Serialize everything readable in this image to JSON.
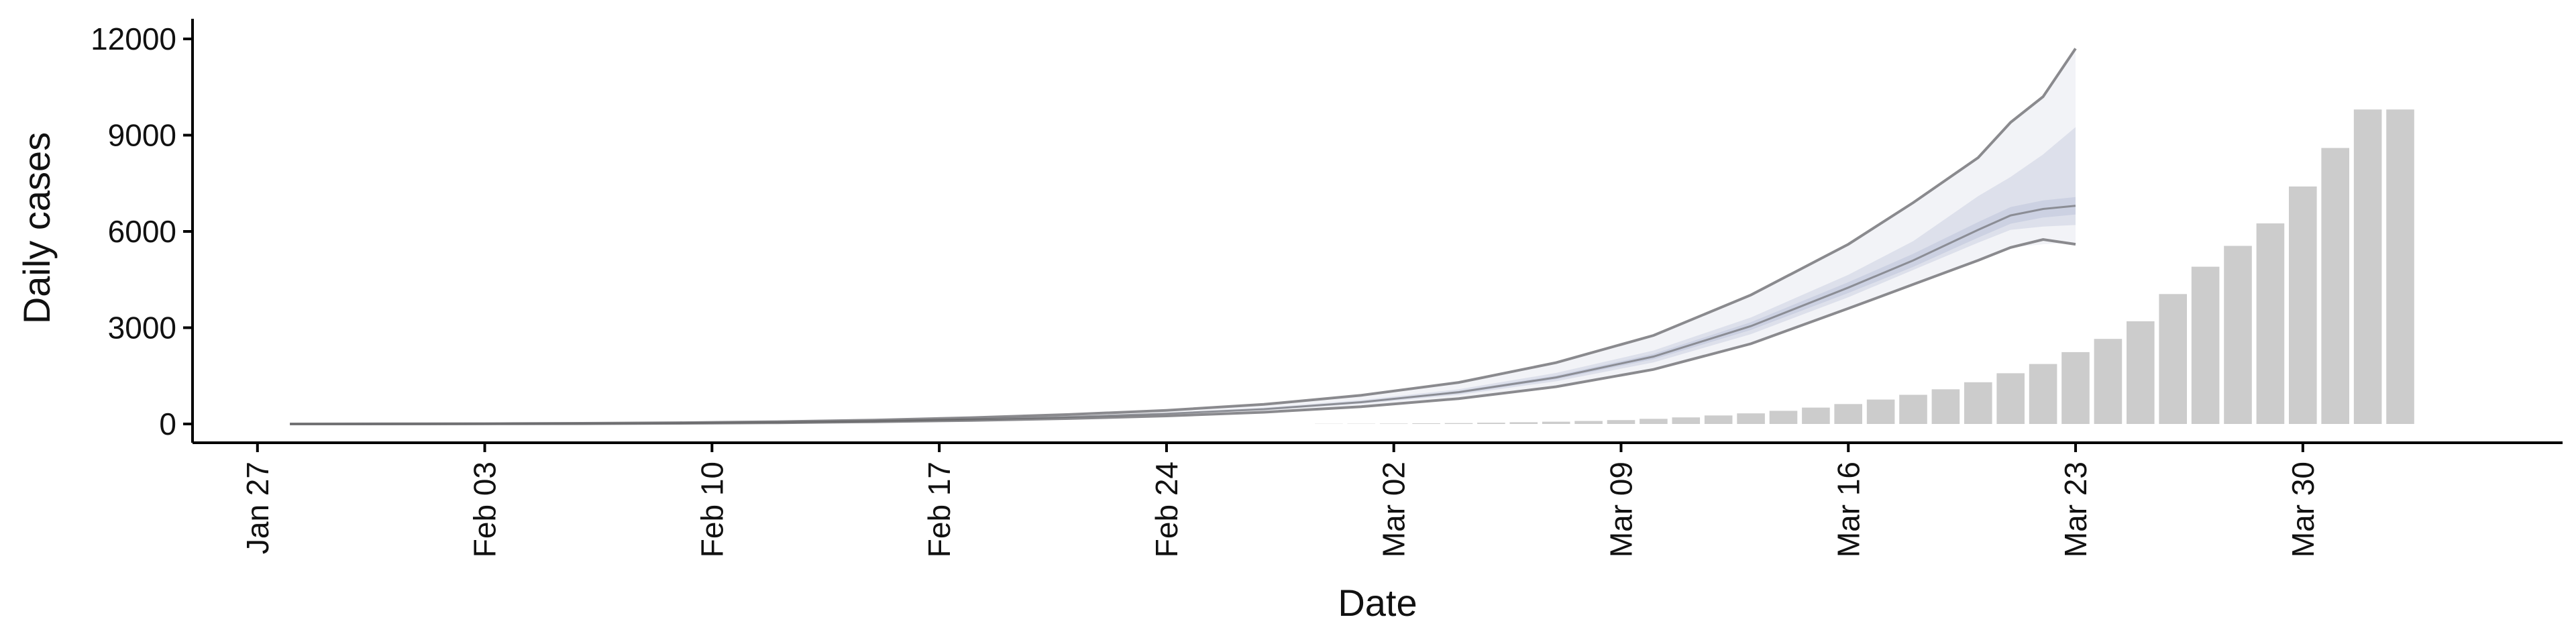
{
  "chart_data": {
    "type": "bar+line",
    "xlabel": "Date",
    "ylabel": "Daily cases",
    "ylim": [
      0,
      12000
    ],
    "xlim": [
      "2020-01-25",
      "2020-04-07"
    ],
    "y_ticks": [
      0,
      3000,
      6000,
      9000,
      12000
    ],
    "y_tick_labels": [
      "0",
      "3000",
      "6000",
      "9000",
      "12000"
    ],
    "x_ticks": [
      "2020-01-27",
      "2020-02-03",
      "2020-02-10",
      "2020-02-17",
      "2020-02-24",
      "2020-03-02",
      "2020-03-09",
      "2020-03-16",
      "2020-03-23",
      "2020-03-30"
    ],
    "x_tick_labels": [
      "Jan 27",
      "Feb 03",
      "Feb 10",
      "Feb 17",
      "Feb 24",
      "Mar 02",
      "Mar 09",
      "Mar 16",
      "Mar 23",
      "Mar 30"
    ],
    "grid": false,
    "colors": {
      "bars": "#cccccc",
      "outer_band": "#f2f3f7",
      "inner_band": "#dde0eb",
      "center_band": "#ccd1e2",
      "interval_line": "#8a8a8e",
      "estimate_line": "#555555",
      "axis": "#000000"
    },
    "bars": {
      "dates": [
        "2020-02-29",
        "2020-03-01",
        "2020-03-02",
        "2020-03-03",
        "2020-03-04",
        "2020-03-05",
        "2020-03-06",
        "2020-03-07",
        "2020-03-08",
        "2020-03-09",
        "2020-03-10",
        "2020-03-11",
        "2020-03-12",
        "2020-03-13",
        "2020-03-14",
        "2020-03-15",
        "2020-03-16",
        "2020-03-17",
        "2020-03-18",
        "2020-03-19",
        "2020-03-20",
        "2020-03-21",
        "2020-03-22",
        "2020-03-23",
        "2020-03-24",
        "2020-03-25",
        "2020-03-26",
        "2020-03-27",
        "2020-03-28",
        "2020-03-29",
        "2020-03-30",
        "2020-03-31",
        "2020-04-01",
        "2020-04-02"
      ],
      "values": [
        6,
        9,
        13,
        20,
        28,
        40,
        55,
        72,
        95,
        122,
        160,
        205,
        265,
        330,
        410,
        510,
        620,
        760,
        910,
        1080,
        1300,
        1580,
        1870,
        2240,
        2650,
        3200,
        4050,
        4900,
        5550,
        6250,
        7400,
        8600,
        9800,
        9800
      ]
    },
    "estimate": {
      "dates": [
        "2020-01-28",
        "2020-01-31",
        "2020-02-03",
        "2020-02-06",
        "2020-02-09",
        "2020-02-12",
        "2020-02-15",
        "2020-02-18",
        "2020-02-21",
        "2020-02-24",
        "2020-02-27",
        "2020-03-01",
        "2020-03-04",
        "2020-03-07",
        "2020-03-10",
        "2020-03-13",
        "2020-03-16",
        "2020-03-18",
        "2020-03-20",
        "2020-03-21",
        "2020-03-22",
        "2020-03-23"
      ],
      "center": [
        0,
        2,
        6,
        14,
        28,
        52,
        90,
        145,
        220,
        320,
        460,
        680,
        990,
        1450,
        2100,
        3050,
        4250,
        5100,
        6050,
        6500,
        6700,
        6800
      ],
      "inner_lower": [
        0,
        2,
        5,
        12,
        25,
        47,
        82,
        132,
        202,
        295,
        425,
        630,
        910,
        1330,
        1920,
        2800,
        3950,
        4800,
        5650,
        6050,
        6150,
        6200
      ],
      "inner_upper": [
        0,
        3,
        7,
        16,
        32,
        58,
        99,
        160,
        242,
        350,
        505,
        745,
        1080,
        1590,
        2290,
        3320,
        4650,
        5700,
        7100,
        7700,
        8400,
        9250
      ],
      "interval_lower": [
        0,
        1,
        4,
        9,
        20,
        38,
        68,
        110,
        170,
        250,
        365,
        540,
        790,
        1160,
        1700,
        2500,
        3600,
        4350,
        5100,
        5500,
        5750,
        5600
      ],
      "interval_upper": [
        0,
        4,
        9,
        20,
        40,
        72,
        122,
        196,
        295,
        425,
        610,
        895,
        1295,
        1910,
        2760,
        4020,
        5600,
        6900,
        8300,
        9400,
        10200,
        11700
      ],
      "interval_outer_lower": [
        0,
        1,
        4,
        9,
        20,
        38,
        68,
        110,
        170,
        250,
        365,
        540,
        790,
        1160,
        1700,
        2500,
        3600,
        4350,
        5100,
        5500,
        5600,
        5650
      ],
      "interval_outer_upper": [
        0,
        4,
        9,
        20,
        40,
        72,
        122,
        196,
        295,
        425,
        610,
        895,
        1295,
        1910,
        2760,
        4020,
        5600,
        6900,
        8300,
        9400,
        10200,
        11700
      ]
    }
  }
}
